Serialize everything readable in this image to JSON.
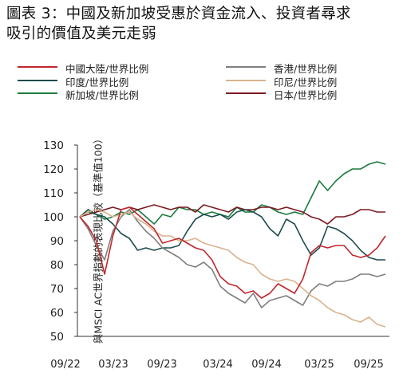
{
  "title_line1": "圖表 3：中國及新加坡受惠於資金流入、投資者尋求",
  "title_line2": "吸引的價值及美元走弱",
  "chart_data": {
    "type": "line",
    "title": "圖表 3：中國及新加坡受惠於資金流入、投資者尋求吸引的價值及美元走弱",
    "xlabel": "",
    "ylabel": "與MSCI AC世界指數的表現比較（基準值100）",
    "x_ticks": [
      "09/22",
      "03/23",
      "09/23",
      "03/24",
      "09/24",
      "03/25",
      "09/25"
    ],
    "ylim": [
      50,
      130
    ],
    "y_ticks": [
      50,
      60,
      70,
      80,
      90,
      100,
      110,
      120,
      130
    ],
    "grid": false,
    "legend_position": "top",
    "series": [
      {
        "name": "中國大陸/世界比例",
        "color": "#c1272d",
        "values": [
          100,
          96,
          90,
          76,
          92,
          103,
          104,
          101,
          98,
          95,
          89,
          90,
          91,
          89,
          87,
          86,
          82,
          75,
          72,
          71,
          68,
          69,
          66,
          68,
          72,
          70,
          68,
          74,
          85,
          88,
          87,
          88,
          88,
          84,
          83,
          84,
          87,
          92
        ]
      },
      {
        "name": "印度/世界比例",
        "color": "#1f4d4d",
        "values": [
          100,
          103,
          101,
          100,
          97,
          93,
          91,
          86,
          87,
          86,
          87,
          87,
          88,
          94,
          99,
          101,
          100,
          101,
          99,
          102,
          103,
          102,
          100,
          95,
          92,
          99,
          97,
          90,
          84,
          87,
          96,
          95,
          93,
          90,
          86,
          83,
          82,
          82
        ]
      },
      {
        "name": "新加坡/世界比例",
        "color": "#1b7a3e",
        "values": [
          100,
          102,
          101,
          99,
          100,
          102,
          101,
          103,
          100,
          97,
          101,
          100,
          104,
          103,
          103,
          101,
          102,
          101,
          100,
          104,
          102,
          102,
          105,
          104,
          102,
          101,
          102,
          101,
          108,
          115,
          111,
          115,
          118,
          120,
          120,
          122,
          123,
          122
        ]
      },
      {
        "name": "香港/世界比例",
        "color": "#7f7f7f",
        "values": [
          100,
          95,
          88,
          82,
          94,
          100,
          103,
          98,
          94,
          91,
          87,
          85,
          83,
          80,
          79,
          81,
          78,
          71,
          68,
          66,
          64,
          68,
          62,
          65,
          66,
          67,
          65,
          63,
          69,
          72,
          71,
          73,
          73,
          74,
          76,
          76,
          75,
          76
        ]
      },
      {
        "name": "印尼/世界比例",
        "color": "#d9b48f",
        "values": [
          100,
          102,
          103,
          102,
          100,
          101,
          102,
          99,
          97,
          94,
          92,
          92,
          90,
          90,
          91,
          89,
          88,
          87,
          86,
          83,
          81,
          80,
          76,
          74,
          73,
          74,
          73,
          70,
          67,
          65,
          62,
          60,
          59,
          57,
          56,
          58,
          55,
          54
        ]
      },
      {
        "name": "日本/世界比例",
        "color": "#7a1a22",
        "values": [
          100,
          101,
          102,
          103,
          104,
          103,
          104,
          103,
          104,
          105,
          104,
          103,
          104,
          104,
          102,
          105,
          104,
          103,
          102,
          104,
          103,
          103,
          104,
          104,
          103,
          104,
          103,
          102,
          100,
          99,
          97,
          100,
          100,
          101,
          103,
          103,
          102,
          102
        ]
      }
    ]
  }
}
